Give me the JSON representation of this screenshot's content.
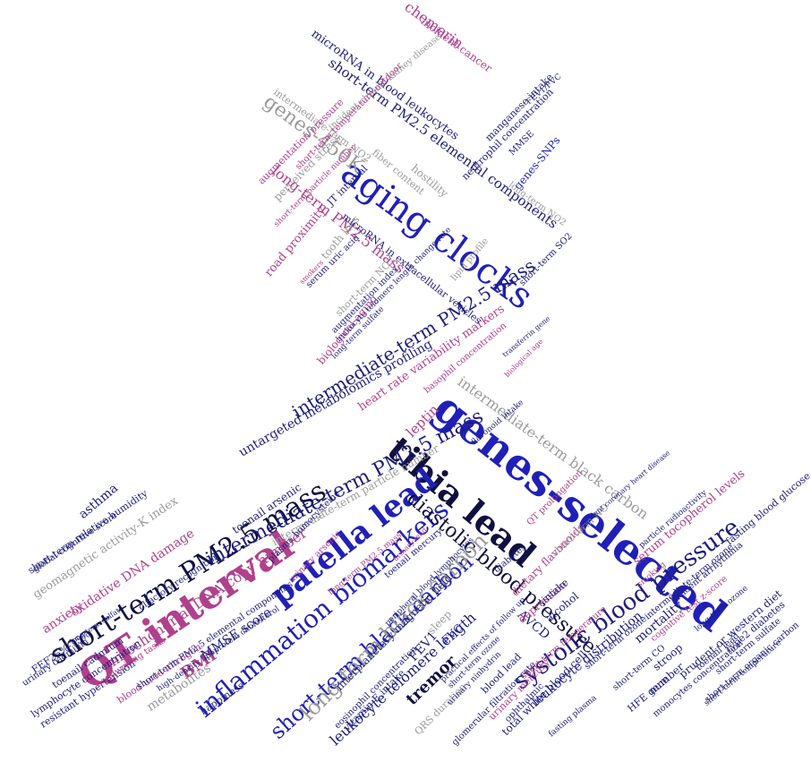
{
  "palette": {
    "navy": "#1c1c7c",
    "blue": "#2020b8",
    "magenta": "#b0408c",
    "gray": "#9a9a9a",
    "dark": "#101040"
  },
  "words": [
    "genes-selected",
    "QT interval",
    "aging clocks",
    "tibia lead",
    "patella lead",
    "inflammation biomarkers",
    "short-term PM2.5 mass",
    "intermediate-term PM2.5 mass",
    "intermediate-term PM2.5 mass",
    "systolic blood pressure",
    "diastolic blood pressure",
    "short-term black carbon",
    "long-term black carbon",
    "genes-450K",
    "intermediate-term black carbon",
    "mitochondrial DNA copy number",
    "leukocyte telomere length",
    "short-term PM2.5 elemental components",
    "long-term PM2.5 mass",
    "untargeted metabolomics profiling",
    "tremor",
    "FEV1",
    "BMI",
    "MMSE score",
    "AVCD",
    "leptin",
    "chemerin",
    "leukocyte distribution",
    "heart rate variability markers",
    "interplanetary magnetic field",
    "geomagnetic activity-K index",
    "oxidative DNA damage",
    "anxiety",
    "toenail arsenic",
    "intermediate-term particle number",
    "microRNA in blood leukocytes",
    "genes-SNPs",
    "incident cancer",
    "asthma",
    "mortality",
    "serum tocopherol levels",
    "FVC",
    "metabolites",
    "sleep",
    "alcohol",
    "depression",
    "intake",
    "dietary flavonoids",
    "short-term NO",
    "short-term relative humidity",
    "global cognitive score",
    "FEF25%-75%",
    "urinary cadmium",
    "toenail cadmium",
    "lymphocyte concentration",
    "resistant hypertension",
    "handwriting tasks",
    "blood urea nitrogen",
    "happiness",
    "olfactory recognition",
    "toenail mercury",
    "perceived stress",
    "hostility",
    "fiber content",
    "road proximity",
    "tooth loss",
    "biological aging",
    "intermediate-term NO2",
    "long-term NO2",
    "short-term NO2",
    "JT interval",
    "augmentation pressure",
    "augmentation index",
    "serum uric acid",
    "microRNA in extracellular vesicles",
    "manganese intake",
    "neutrophil concentration",
    "MMSE",
    "lipid profile",
    "short-term SO2",
    "basophil concentration",
    "prudent or western diet",
    "type2 diabetes",
    "fasting blood glucose",
    "toenail lead",
    "stroop",
    "number",
    "HFE gene",
    "short-term CO",
    "urinary mercury",
    "ophthalmic",
    "total white blood cell",
    "blood lead",
    "QRS duration",
    "vitamin E intake",
    "eosinophil concentration",
    "glomerular filtration rate",
    "cognitive test z-score",
    "QT prolongation",
    "plasma homocysteine",
    "urinary arsenic",
    "short-term temperature",
    "diabetes",
    "short-term PM2.5 elemental components",
    "long-term PM2.5 mass",
    "high-density lipoprotein cholesterol",
    "incident chronic kidney disease",
    "FEV1/FVC",
    "short-term temperature-outdoor",
    "short-term particle number",
    "leukocyte telomere length change rate",
    "short-term ozone",
    "long-term sulfate",
    "short-term sulfate",
    "short-term organic carbon",
    "short-term temperature",
    "intermediate-term ozone",
    "incident arrhythmia",
    "monocytes concentration",
    "long-term ozone",
    "particle radioactivity",
    "practical effects of follow up",
    "smoking",
    "peripheral blood lymphocytes",
    "urinary ninhydrin",
    "short-term ozone",
    "fasting plasma",
    "biological age",
    "urinary lead",
    "flavonoid intake",
    "transferrin gene",
    "long-term sulfate",
    "incident coronary heart disease",
    "smokers",
    "periodontal disease progression"
  ]
}
